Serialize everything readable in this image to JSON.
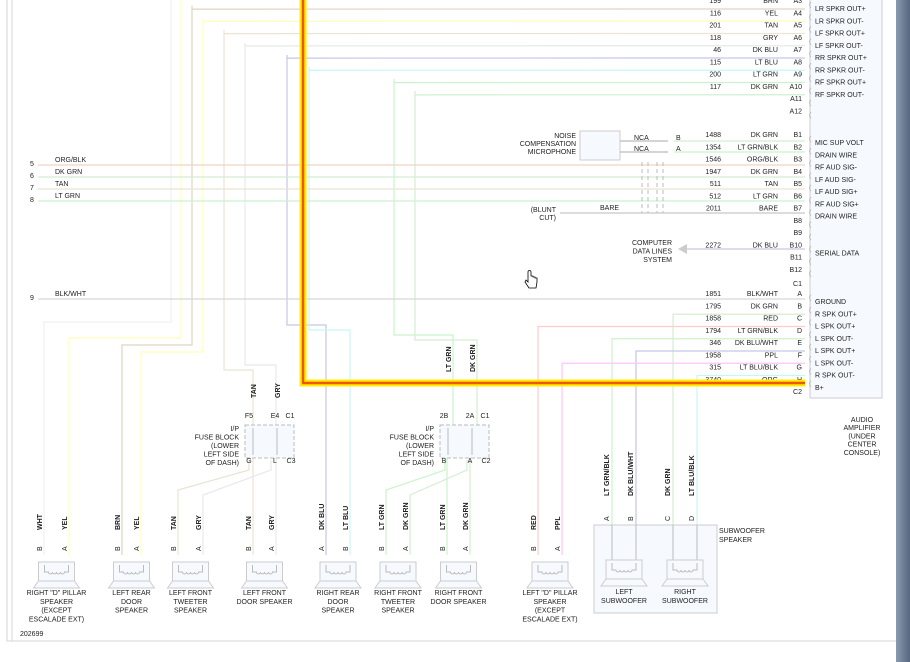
{
  "diagram_id": "202699",
  "amplifier": {
    "label": [
      "AUDIO",
      "AMPLIFIER",
      "(UNDER",
      "CENTER",
      "CONSOLE)"
    ],
    "connector_c1_label": "C1",
    "connector_c2_label": "C2",
    "rows_a": [
      {
        "circuit": "199",
        "color": "BRN",
        "pin": "A3",
        "function": "LR SPKR OUT+"
      },
      {
        "circuit": "116",
        "color": "YEL",
        "pin": "A4",
        "function": "LR SPKR OUT-"
      },
      {
        "circuit": "201",
        "color": "TAN",
        "pin": "A5",
        "function": "LF SPKR OUT+"
      },
      {
        "circuit": "118",
        "color": "GRY",
        "pin": "A6",
        "function": "LF SPKR OUT-"
      },
      {
        "circuit": "46",
        "color": "DK BLU",
        "pin": "A7",
        "function": "RR SPKR OUT+"
      },
      {
        "circuit": "115",
        "color": "LT BLU",
        "pin": "A8",
        "function": "RR SPKR OUT-"
      },
      {
        "circuit": "200",
        "color": "LT GRN",
        "pin": "A9",
        "function": "RF SPKR OUT+"
      },
      {
        "circuit": "117",
        "color": "DK GRN",
        "pin": "A10",
        "function": "RF SPKR OUT-"
      },
      {
        "circuit": "",
        "color": "",
        "pin": "A11",
        "function": ""
      },
      {
        "circuit": "",
        "color": "",
        "pin": "A12",
        "function": ""
      }
    ],
    "rows_b": [
      {
        "circuit": "1488",
        "color": "DK GRN",
        "pin": "B1",
        "function": "MIC SUP VOLT"
      },
      {
        "circuit": "1354",
        "color": "LT GRN/BLK",
        "pin": "B2",
        "function": "DRAIN WIRE"
      },
      {
        "circuit": "1546",
        "color": "ORG/BLK",
        "pin": "B3",
        "function": "RF AUD SIG-"
      },
      {
        "circuit": "1947",
        "color": "DK GRN",
        "pin": "B4",
        "function": "LF AUD SIG-"
      },
      {
        "circuit": "511",
        "color": "TAN",
        "pin": "B5",
        "function": "LF AUD SIG+"
      },
      {
        "circuit": "512",
        "color": "LT GRN",
        "pin": "B6",
        "function": "RF AUD SIG+"
      },
      {
        "circuit": "2011",
        "color": "BARE",
        "pin": "B7",
        "function": "DRAIN WIRE"
      },
      {
        "circuit": "",
        "color": "",
        "pin": "B8",
        "function": ""
      },
      {
        "circuit": "",
        "color": "",
        "pin": "B9",
        "function": ""
      },
      {
        "circuit": "2272",
        "color": "DK BLU",
        "pin": "B10",
        "function": "SERIAL DATA"
      },
      {
        "circuit": "",
        "color": "",
        "pin": "B11",
        "function": ""
      },
      {
        "circuit": "",
        "color": "",
        "pin": "B12",
        "function": ""
      }
    ],
    "rows_c2": [
      {
        "circuit": "1851",
        "color": "BLK/WHT",
        "pin": "A",
        "function": "GROUND"
      },
      {
        "circuit": "1795",
        "color": "DK GRN",
        "pin": "B",
        "function": "R SPK OUT+"
      },
      {
        "circuit": "1858",
        "color": "RED",
        "pin": "C",
        "function": "L SPK OUT+"
      },
      {
        "circuit": "1794",
        "color": "LT GRN/BLK",
        "pin": "D",
        "function": "L SPK OUT-"
      },
      {
        "circuit": "346",
        "color": "DK BLU/WHT",
        "pin": "E",
        "function": "L SPK OUT+"
      },
      {
        "circuit": "1958",
        "color": "PPL",
        "pin": "F",
        "function": "L SPK OUT-"
      },
      {
        "circuit": "315",
        "color": "LT BLU/BLK",
        "pin": "G",
        "function": "R SPK OUT-"
      },
      {
        "circuit": "3740",
        "color": "ORG",
        "pin": "H",
        "function": "B+"
      }
    ]
  },
  "left_wires": [
    {
      "num": "5",
      "color": "ORG/BLK"
    },
    {
      "num": "6",
      "color": "DK GRN"
    },
    {
      "num": "7",
      "color": "TAN"
    },
    {
      "num": "8",
      "color": "LT GRN"
    },
    {
      "num": "9",
      "color": "BLK/WHT"
    }
  ],
  "microphone": {
    "label": [
      "NOISE",
      "COMPENSATION",
      "MICROPHONE"
    ],
    "wires": [
      {
        "label": "NCA",
        "pin": "B"
      },
      {
        "label": "NCA",
        "pin": "A"
      }
    ]
  },
  "blunt_cut": {
    "label": [
      "(BLUNT",
      "CUT)"
    ],
    "wire": "BARE"
  },
  "data_lines": {
    "label": [
      "COMPUTER",
      "DATA LINES",
      "SYSTEM"
    ]
  },
  "fuse_blocks": [
    {
      "label": [
        "I/P",
        "FUSE BLOCK",
        "(LOWER",
        "LEFT SIDE",
        "OF DASH)"
      ],
      "top_pins": [
        "F5",
        "E4"
      ],
      "top_conn": "C1",
      "bottom_pins": [
        "G",
        "L"
      ],
      "bottom_conn": "C3",
      "top_wires": [
        "TAN",
        "GRY"
      ]
    },
    {
      "label": [
        "I/P",
        "FUSE BLOCK",
        "(LOWER",
        "LEFT SIDE",
        "OF DASH)"
      ],
      "top_pins": [
        "2B",
        "2A"
      ],
      "top_conn": "C1",
      "bottom_pins": [
        "B",
        "A"
      ],
      "bottom_conn": "C2",
      "top_wires": [
        "LT GRN",
        "DK GRN"
      ]
    }
  ],
  "speakers": [
    {
      "label": [
        "RIGHT \"D\" PILLAR",
        "SPEAKER",
        "(EXCEPT",
        "ESCALADE EXT)"
      ],
      "pins": [
        {
          "pin": "B",
          "color": "WHT"
        },
        {
          "pin": "A",
          "color": "YEL"
        }
      ]
    },
    {
      "label": [
        "LEFT REAR",
        "DOOR",
        "SPEAKER"
      ],
      "pins": [
        {
          "pin": "B",
          "color": "BRN"
        },
        {
          "pin": "A",
          "color": "YEL"
        }
      ]
    },
    {
      "label": [
        "LEFT FRONT",
        "TWEETER",
        "SPEAKER"
      ],
      "pins": [
        {
          "pin": "B",
          "color": "TAN"
        },
        {
          "pin": "A",
          "color": "GRY"
        }
      ]
    },
    {
      "label": [
        "LEFT FRONT",
        "DOOR SPEAKER"
      ],
      "pins": [
        {
          "pin": "B",
          "color": "TAN"
        },
        {
          "pin": "A",
          "color": "GRY"
        }
      ]
    },
    {
      "label": [
        "RIGHT REAR",
        "DOOR",
        "SPEAKER"
      ],
      "pins": [
        {
          "pin": "A",
          "color": "DK BLU"
        },
        {
          "pin": "B",
          "color": "LT BLU"
        }
      ]
    },
    {
      "label": [
        "RIGHT FRONT",
        "TWEETER",
        "SPEAKER"
      ],
      "pins": [
        {
          "pin": "B",
          "color": "LT GRN"
        },
        {
          "pin": "A",
          "color": "DK GRN"
        }
      ]
    },
    {
      "label": [
        "RIGHT FRONT",
        "DOOR SPEAKER"
      ],
      "pins": [
        {
          "pin": "B",
          "color": "LT GRN"
        },
        {
          "pin": "A",
          "color": "DK GRN"
        }
      ]
    },
    {
      "label": [
        "LEFT \"D\" PILLAR",
        "SPEAKER",
        "(EXCEPT",
        "ESCALADE EXT)"
      ],
      "pins": [
        {
          "pin": "B",
          "color": "RED"
        },
        {
          "pin": "A",
          "color": "PPL"
        }
      ]
    }
  ],
  "subwoofer": {
    "label": [
      "SUBWOOFER",
      "SPEAKER"
    ],
    "pins": [
      {
        "pin": "A",
        "color": "LT GRN/BLK"
      },
      {
        "pin": "B",
        "color": "DK BLU/WHT"
      },
      {
        "pin": "C",
        "color": "DK GRN"
      },
      {
        "pin": "D",
        "color": "LT BLU/BLK"
      }
    ],
    "units": [
      {
        "label": [
          "LEFT",
          "SUBWOOFER"
        ]
      },
      {
        "label": [
          "RIGHT",
          "SUBWOOFER"
        ]
      }
    ]
  },
  "colors": {
    "highlight_outer": "#ffee00",
    "highlight_inner": "#e05000",
    "BRN": "#e0d4c0",
    "YEL": "#ffffb8",
    "TAN": "#ebe4d4",
    "GRY": "#e8e8e8",
    "WHT": "#f0f0f0",
    "DK BLU": "#c4c6e6",
    "LT BLU": "#c8f6f6",
    "LT GRN": "#ccf2cc",
    "DK GRN": "#d2eed2",
    "ORG/BLK": "#f0d4c4",
    "RED": "#ffcccc",
    "PPL": "#ffc4ff",
    "BLK/WHT": "#d6d6d6",
    "BARE": "#cccccc"
  }
}
